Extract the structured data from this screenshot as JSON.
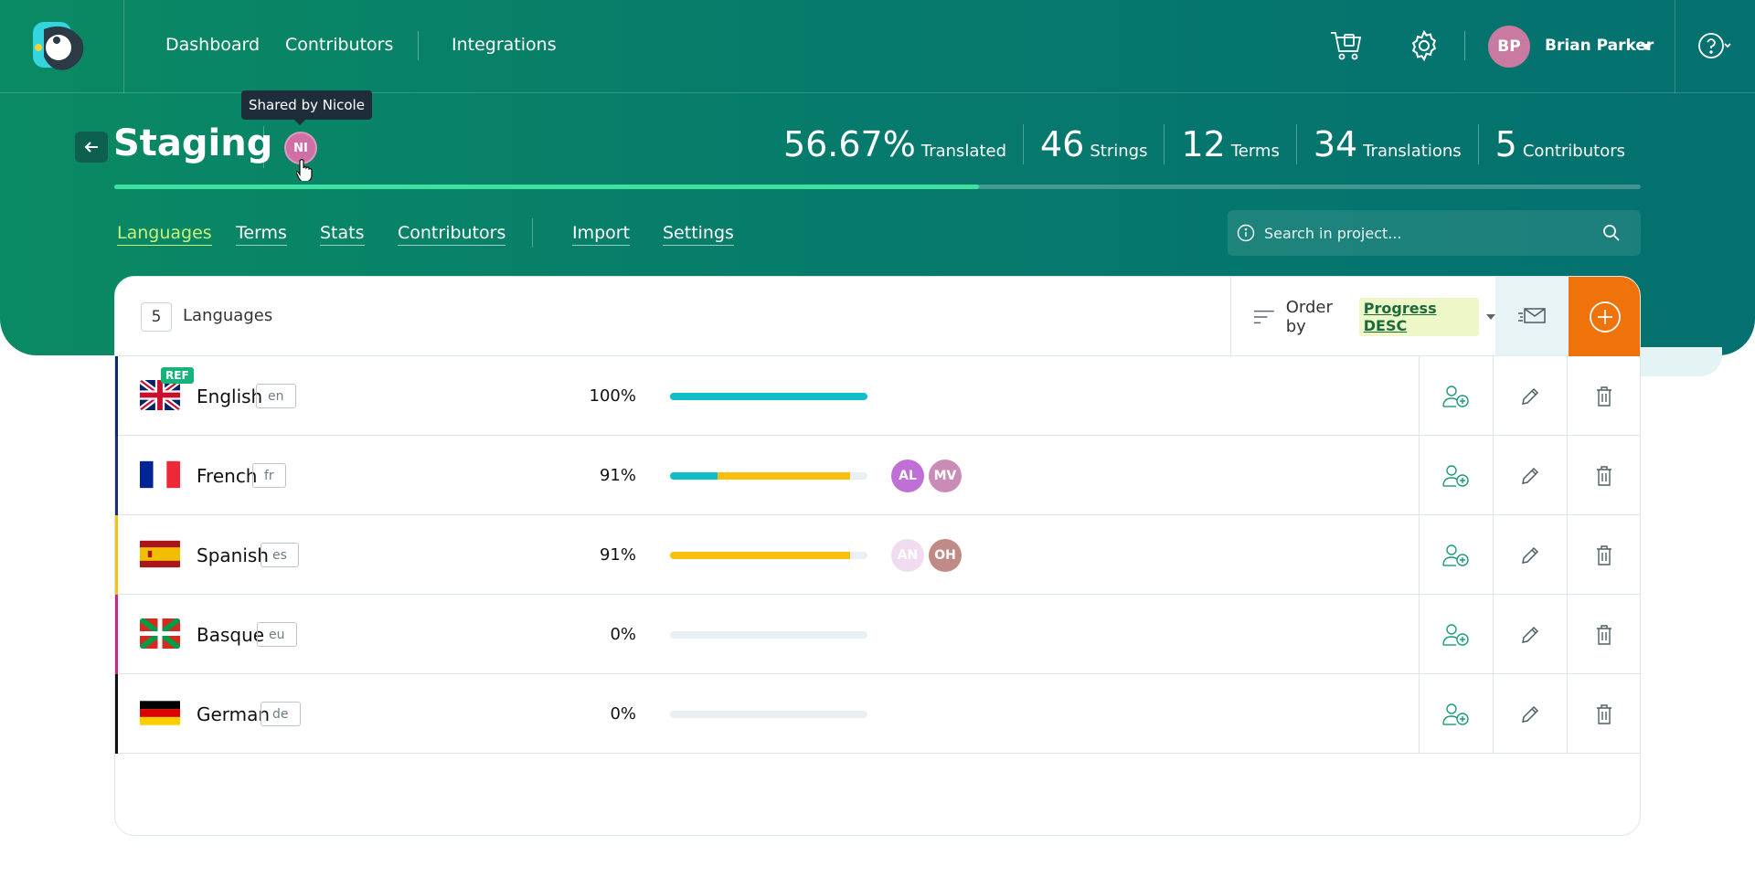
{
  "nav": {
    "links": [
      "Dashboard",
      "Contributors",
      "Integrations"
    ],
    "user_initials": "BP",
    "user_name": "Brian Parker"
  },
  "project": {
    "title": "Staging",
    "shared_avatar": "NI",
    "tooltip": "Shared by Nicole",
    "progress_fraction": 0.5667,
    "stats": [
      {
        "value": "56.67%",
        "label": "Translated"
      },
      {
        "value": "46",
        "label": "Strings"
      },
      {
        "value": "12",
        "label": "Terms"
      },
      {
        "value": "34",
        "label": "Translations"
      },
      {
        "value": "5",
        "label": "Contributors"
      }
    ]
  },
  "subnav": {
    "tabs": [
      "Languages",
      "Terms",
      "Stats",
      "Contributors",
      "Import",
      "Settings"
    ],
    "active": "Languages",
    "search_placeholder": "Search in project..."
  },
  "table": {
    "count": "5",
    "count_label": "Languages",
    "order_label": "Order by",
    "order_value": "Progress DESC",
    "ref_badge": "REF",
    "rows": [
      {
        "name": "English",
        "code": "en",
        "percent": "100%",
        "accent": "#0b2a6f",
        "bar_approved": 1.0,
        "bar_translated": 0.0,
        "contributors": []
      },
      {
        "name": "French",
        "code": "fr",
        "percent": "91%",
        "accent": "#1b2d7a",
        "bar_approved": 0.24,
        "bar_translated": 0.67,
        "contributors": [
          {
            "initials": "AL",
            "color": "#c06fd6"
          },
          {
            "initials": "MV",
            "color": "#c98cb7"
          }
        ]
      },
      {
        "name": "Spanish",
        "code": "es",
        "percent": "91%",
        "accent": "#f2c316",
        "bar_approved": 0.0,
        "bar_translated": 0.91,
        "contributors": [
          {
            "initials": "AN",
            "color": "#f1dcef"
          },
          {
            "initials": "OH",
            "color": "#c08a86"
          }
        ]
      },
      {
        "name": "Basque",
        "code": "eu",
        "percent": "0%",
        "accent": "#c8288a",
        "bar_approved": 0.0,
        "bar_translated": 0.0,
        "contributors": []
      },
      {
        "name": "German",
        "code": "de",
        "percent": "0%",
        "accent": "#111111",
        "bar_approved": 0.0,
        "bar_translated": 0.0,
        "contributors": []
      }
    ]
  },
  "colors": {
    "approved": "#12bdc8",
    "translated": "#fbbd0e",
    "accent_orange": "#ef720b"
  }
}
